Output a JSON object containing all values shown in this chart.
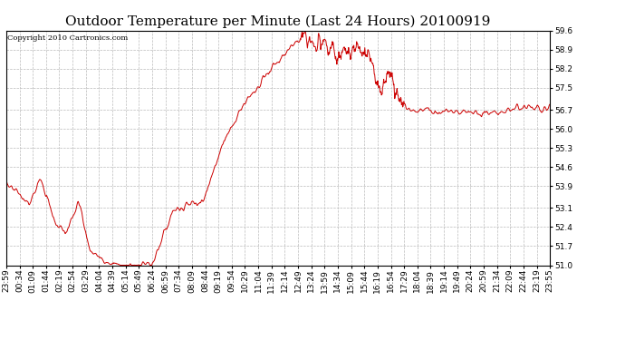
{
  "title": "Outdoor Temperature per Minute (Last 24 Hours) 20100919",
  "copyright": "Copyright 2010 Cartronics.com",
  "line_color": "#cc0000",
  "background_color": "#ffffff",
  "grid_color": "#bbbbbb",
  "ylim": [
    51.0,
    59.6
  ],
  "yticks": [
    51.0,
    51.7,
    52.4,
    53.1,
    53.9,
    54.6,
    55.3,
    56.0,
    56.7,
    57.5,
    58.2,
    58.9,
    59.6
  ],
  "xtick_labels": [
    "23:59",
    "00:34",
    "01:09",
    "01:44",
    "02:19",
    "02:54",
    "03:29",
    "04:04",
    "04:39",
    "05:14",
    "05:49",
    "06:24",
    "06:59",
    "07:34",
    "08:09",
    "08:44",
    "09:19",
    "09:54",
    "10:29",
    "11:04",
    "11:39",
    "12:14",
    "12:49",
    "13:24",
    "13:59",
    "14:34",
    "15:09",
    "15:44",
    "16:19",
    "16:54",
    "17:29",
    "18:04",
    "18:39",
    "19:14",
    "19:49",
    "20:24",
    "20:59",
    "21:34",
    "22:09",
    "22:44",
    "23:19",
    "23:55"
  ],
  "title_fontsize": 11,
  "copyright_fontsize": 6,
  "tick_fontsize": 6.5
}
